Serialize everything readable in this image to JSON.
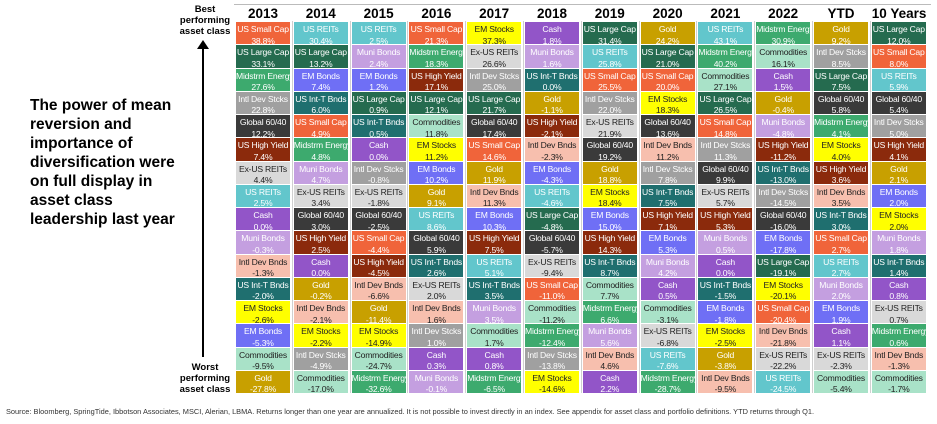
{
  "headline": "The power of mean reversion and importance of diversification were on full display in asset class leadership last year",
  "best_label": "Best performing asset class",
  "worst_label": "Worst performing asset class",
  "footer": "Source: Bloomberg, SpringTide, Ibbotson Associates, MSCI, Alerian, LBMA. Returns longer than one year are annualized. It is not possible to invest directly in an index. See appendix for asset class and portfolio definitions. YTD returns through Q1.",
  "colors": {
    "US Small Cap": {
      "bg": "#f0643a",
      "fg": "#fff"
    },
    "US Large Cap": {
      "bg": "#256b4f",
      "fg": "#fff"
    },
    "Midstrm Energy": {
      "bg": "#3daa6e",
      "fg": "#fff"
    },
    "Intl Dev Stcks": {
      "bg": "#a0a0a0",
      "fg": "#fff"
    },
    "Global 60/40": {
      "bg": "#3a3a3a",
      "fg": "#fff"
    },
    "US High Yield": {
      "bg": "#8b2a0c",
      "fg": "#fff"
    },
    "Ex-US REITs": {
      "bg": "#d9d9d9",
      "fg": "#222"
    },
    "US REITs": {
      "bg": "#62c6cc",
      "fg": "#fff"
    },
    "Cash": {
      "bg": "#9255c8",
      "fg": "#fff"
    },
    "Muni Bonds": {
      "bg": "#c49fe0",
      "fg": "#fff"
    },
    "Intl Dev Bnds": {
      "bg": "#f7bfae",
      "fg": "#222"
    },
    "US Int-T Bnds": {
      "bg": "#1f6f6f",
      "fg": "#fff"
    },
    "EM Stocks": {
      "bg": "#ffff00",
      "fg": "#222"
    },
    "EM Bonds": {
      "bg": "#6f6ff5",
      "fg": "#fff"
    },
    "Commodities": {
      "bg": "#a9e2c8",
      "fg": "#222"
    },
    "Gold": {
      "bg": "#c8a000",
      "fg": "#fff"
    }
  },
  "chart_data": {
    "type": "table",
    "title": "",
    "columns": [
      {
        "header": "2013",
        "cells": [
          [
            "US Small Cap",
            "38.8%"
          ],
          [
            "US Large Cap",
            "33.1%"
          ],
          [
            "Midstrm Energy",
            "27.6%"
          ],
          [
            "Intl Dev Stcks",
            "22.8%"
          ],
          [
            "Global 60/40",
            "12.2%"
          ],
          [
            "US High Yield",
            "7.4%"
          ],
          [
            "Ex-US REITs",
            "4.4%"
          ],
          [
            "US REITs",
            "2.5%"
          ],
          [
            "Cash",
            "0.0%"
          ],
          [
            "Muni Bonds",
            "-0.3%"
          ],
          [
            "Intl Dev Bnds",
            "-1.3%"
          ],
          [
            "US Int-T Bnds",
            "-2.0%"
          ],
          [
            "EM Stocks",
            "-2.6%"
          ],
          [
            "EM Bonds",
            "-5.3%"
          ],
          [
            "Commodities",
            "-9.5%"
          ],
          [
            "Gold",
            "-27.8%"
          ]
        ]
      },
      {
        "header": "2014",
        "cells": [
          [
            "US REITs",
            "30.4%"
          ],
          [
            "US Large Cap",
            "13.2%"
          ],
          [
            "EM Bonds",
            "7.4%"
          ],
          [
            "US Int-T Bnds",
            "6.0%"
          ],
          [
            "US Small Cap",
            "4.9%"
          ],
          [
            "Midstrm Energy",
            "4.8%"
          ],
          [
            "Muni Bonds",
            "4.7%"
          ],
          [
            "Ex-US REITs",
            "3.4%"
          ],
          [
            "Global 60/40",
            "3.0%"
          ],
          [
            "US High Yield",
            "2.5%"
          ],
          [
            "Cash",
            "0.0%"
          ],
          [
            "Gold",
            "-0.2%"
          ],
          [
            "Intl Dev Bnds",
            "-2.1%"
          ],
          [
            "EM Stocks",
            "-2.2%"
          ],
          [
            "Intl Dev Stcks",
            "-4.9%"
          ],
          [
            "Commodities",
            "-17.0%"
          ]
        ]
      },
      {
        "header": "2015",
        "cells": [
          [
            "US REITs",
            "2.5%"
          ],
          [
            "Muni Bonds",
            "2.4%"
          ],
          [
            "EM Bonds",
            "1.2%"
          ],
          [
            "US Large Cap",
            "0.9%"
          ],
          [
            "US Int-T Bnds",
            "0.5%"
          ],
          [
            "Cash",
            "0.0%"
          ],
          [
            "Intl Dev Stcks",
            "-0.8%"
          ],
          [
            "Ex-US REITs",
            "-1.8%"
          ],
          [
            "Global 60/40",
            "-2.5%"
          ],
          [
            "US Small Cap",
            "-4.4%"
          ],
          [
            "US High Yield",
            "-4.5%"
          ],
          [
            "Intl Dev Bnds",
            "-6.6%"
          ],
          [
            "Gold",
            "-11.4%"
          ],
          [
            "EM Stocks",
            "-14.9%"
          ],
          [
            "Commodities",
            "-24.7%"
          ],
          [
            "Midstrm Energy",
            "-32.6%"
          ]
        ]
      },
      {
        "header": "2016",
        "cells": [
          [
            "US Small Cap",
            "21.3%"
          ],
          [
            "Midstrm Energy",
            "18.3%"
          ],
          [
            "US High Yield",
            "17.1%"
          ],
          [
            "US Large Cap",
            "12.1%"
          ],
          [
            "Commodities",
            "11.8%"
          ],
          [
            "EM Stocks",
            "11.2%"
          ],
          [
            "EM Bonds",
            "10.2%"
          ],
          [
            "Gold",
            "9.1%"
          ],
          [
            "US REITs",
            "8.6%"
          ],
          [
            "Global 60/40",
            "5.9%"
          ],
          [
            "US Int-T Bnds",
            "2.6%"
          ],
          [
            "Ex-US REITs",
            "2.0%"
          ],
          [
            "Intl Dev Bnds",
            "1.6%"
          ],
          [
            "Intl Dev Stcks",
            "1.0%"
          ],
          [
            "Cash",
            "0.3%"
          ],
          [
            "Muni Bonds",
            "-0.1%"
          ]
        ]
      },
      {
        "header": "2017",
        "cells": [
          [
            "EM Stocks",
            "37.3%"
          ],
          [
            "Ex-US REITs",
            "26.6%"
          ],
          [
            "Intl Dev Stcks",
            "25.0%"
          ],
          [
            "US Large Cap",
            "21.7%"
          ],
          [
            "Global 60/40",
            "17.4%"
          ],
          [
            "US Small Cap",
            "14.6%"
          ],
          [
            "Gold",
            "11.9%"
          ],
          [
            "Intl Dev Bnds",
            "11.3%"
          ],
          [
            "EM Bonds",
            "10.3%"
          ],
          [
            "US High Yield",
            "7.5%"
          ],
          [
            "US REITs",
            "5.1%"
          ],
          [
            "US Int-T Bnds",
            "3.5%"
          ],
          [
            "Muni Bonds",
            "3.5%"
          ],
          [
            "Commodities",
            "1.7%"
          ],
          [
            "Cash",
            "0.8%"
          ],
          [
            "Midstrm Energy",
            "-6.5%"
          ]
        ]
      },
      {
        "header": "2018",
        "cells": [
          [
            "Cash",
            "1.8%"
          ],
          [
            "Muni Bonds",
            "1.6%"
          ],
          [
            "US Int-T Bnds",
            "0.0%"
          ],
          [
            "Gold",
            "-1.1%"
          ],
          [
            "US High Yield",
            "-2.1%"
          ],
          [
            "Intl Dev Bnds",
            "-2.3%"
          ],
          [
            "EM Bonds",
            "-4.3%"
          ],
          [
            "US REITs",
            "-4.6%"
          ],
          [
            "US Large Cap",
            "-4.8%"
          ],
          [
            "Global 60/40",
            "-5.7%"
          ],
          [
            "Ex-US REITs",
            "-9.4%"
          ],
          [
            "US Small Cap",
            "-11.0%"
          ],
          [
            "Commodities",
            "-11.2%"
          ],
          [
            "Midstrm Energy",
            "-12.4%"
          ],
          [
            "Intl Dev Stcks",
            "-13.8%"
          ],
          [
            "EM Stocks",
            "-14.6%"
          ]
        ]
      },
      {
        "header": "2019",
        "cells": [
          [
            "US Large Cap",
            "31.4%"
          ],
          [
            "US REITs",
            "25.8%"
          ],
          [
            "US Small Cap",
            "25.5%"
          ],
          [
            "Intl Dev Stcks",
            "22.0%"
          ],
          [
            "Ex-US REITs",
            "21.9%"
          ],
          [
            "Global 60/40",
            "19.2%"
          ],
          [
            "Gold",
            "18.8%"
          ],
          [
            "EM Stocks",
            "18.4%"
          ],
          [
            "EM Bonds",
            "15.0%"
          ],
          [
            "US High Yield",
            "14.3%"
          ],
          [
            "US Int-T Bnds",
            "8.7%"
          ],
          [
            "Commodities",
            "7.7%"
          ],
          [
            "Midstrm Energy",
            "6.6%"
          ],
          [
            "Muni Bonds",
            "5.6%"
          ],
          [
            "Intl Dev Bnds",
            "4.6%"
          ],
          [
            "Cash",
            "2.2%"
          ]
        ]
      },
      {
        "header": "2020",
        "cells": [
          [
            "Gold",
            "24.2%"
          ],
          [
            "US Large Cap",
            "21.0%"
          ],
          [
            "US Small Cap",
            "20.0%"
          ],
          [
            "EM Stocks",
            "18.3%"
          ],
          [
            "Global 60/40",
            "13.6%"
          ],
          [
            "Intl Dev Bnds",
            "11.2%"
          ],
          [
            "Intl Dev Stcks",
            "7.8%"
          ],
          [
            "US Int-T Bnds",
            "7.5%"
          ],
          [
            "US High Yield",
            "7.1%"
          ],
          [
            "EM Bonds",
            "5.3%"
          ],
          [
            "Muni Bonds",
            "4.2%"
          ],
          [
            "Cash",
            "0.5%"
          ],
          [
            "Commodities",
            "-3.1%"
          ],
          [
            "Ex-US REITs",
            "-6.8%"
          ],
          [
            "US REITs",
            "-7.6%"
          ],
          [
            "Midstrm Energy",
            "-28.7%"
          ]
        ]
      },
      {
        "header": "2021",
        "cells": [
          [
            "US REITs",
            "43.1%"
          ],
          [
            "Midstrm Energy",
            "40.2%"
          ],
          [
            "Commodities",
            "27.1%"
          ],
          [
            "US Large Cap",
            "26.5%"
          ],
          [
            "US Small Cap",
            "14.8%"
          ],
          [
            "Intl Dev Stcks",
            "11.3%"
          ],
          [
            "Global 60/40",
            "9.9%"
          ],
          [
            "Ex-US REITs",
            "5.7%"
          ],
          [
            "US High Yield",
            "5.3%"
          ],
          [
            "Muni Bonds",
            "0.5%"
          ],
          [
            "Cash",
            "0.0%"
          ],
          [
            "US Int-T Bnds",
            "-1.5%"
          ],
          [
            "EM Bonds",
            "-1.8%"
          ],
          [
            "EM Stocks",
            "-2.5%"
          ],
          [
            "Gold",
            "-3.8%"
          ],
          [
            "Intl Dev Bnds",
            "-9.5%"
          ]
        ]
      },
      {
        "header": "2022",
        "cells": [
          [
            "Midstrm Energy",
            "30.9%"
          ],
          [
            "Commodities",
            "16.1%"
          ],
          [
            "Cash",
            "1.5%"
          ],
          [
            "Gold",
            "-0.4%"
          ],
          [
            "Muni Bonds",
            "-4.8%"
          ],
          [
            "US High Yield",
            "-11.2%"
          ],
          [
            "US Int-T Bnds",
            "-13.0%"
          ],
          [
            "Intl Dev Stcks",
            "-14.5%"
          ],
          [
            "Global 60/40",
            "-16.0%"
          ],
          [
            "EM Bonds",
            "-17.8%"
          ],
          [
            "US Large Cap",
            "-19.1%"
          ],
          [
            "EM Stocks",
            "-20.1%"
          ],
          [
            "US Small Cap",
            "-20.4%"
          ],
          [
            "Intl Dev Bnds",
            "-21.8%"
          ],
          [
            "Ex-US REITs",
            "-22.2%"
          ],
          [
            "US REITs",
            "-24.5%"
          ]
        ]
      },
      {
        "header": "YTD",
        "cells": [
          [
            "Gold",
            "9.2%"
          ],
          [
            "Intl Dev Stcks",
            "8.5%"
          ],
          [
            "US Large Cap",
            "7.5%"
          ],
          [
            "Global 60/40",
            "5.8%"
          ],
          [
            "Midstrm Energy",
            "4.1%"
          ],
          [
            "EM Stocks",
            "4.0%"
          ],
          [
            "US High Yield",
            "3.6%"
          ],
          [
            "Intl Dev Bnds",
            "3.5%"
          ],
          [
            "US Int-T Bnds",
            "3.0%"
          ],
          [
            "US Small Cap",
            "2.7%"
          ],
          [
            "US REITs",
            "2.7%"
          ],
          [
            "Muni Bonds",
            "2.0%"
          ],
          [
            "EM Bonds",
            "1.9%"
          ],
          [
            "Cash",
            "1.1%"
          ],
          [
            "Ex-US REITs",
            "-2.3%"
          ],
          [
            "Commodities",
            "-5.4%"
          ]
        ]
      },
      {
        "header": "10 Years",
        "cells": [
          [
            "US Large Cap",
            "12.0%"
          ],
          [
            "US Small Cap",
            "8.0%"
          ],
          [
            "US REITs",
            "5.9%"
          ],
          [
            "Global 60/40",
            "5.4%"
          ],
          [
            "Intl Dev Stcks",
            "5.0%"
          ],
          [
            "US High Yield",
            "4.1%"
          ],
          [
            "Gold",
            "2.1%"
          ],
          [
            "EM Bonds",
            "2.0%"
          ],
          [
            "EM Stocks",
            "2.0%"
          ],
          [
            "Muni Bonds",
            "1.8%"
          ],
          [
            "US Int-T Bnds",
            "1.4%"
          ],
          [
            "Cash",
            "0.8%"
          ],
          [
            "Ex-US REITs",
            "0.7%"
          ],
          [
            "Midstrm Energy",
            "0.6%"
          ],
          [
            "Intl Dev Bnds",
            "-1.3%"
          ],
          [
            "Commodities",
            "-1.7%"
          ]
        ]
      }
    ]
  }
}
